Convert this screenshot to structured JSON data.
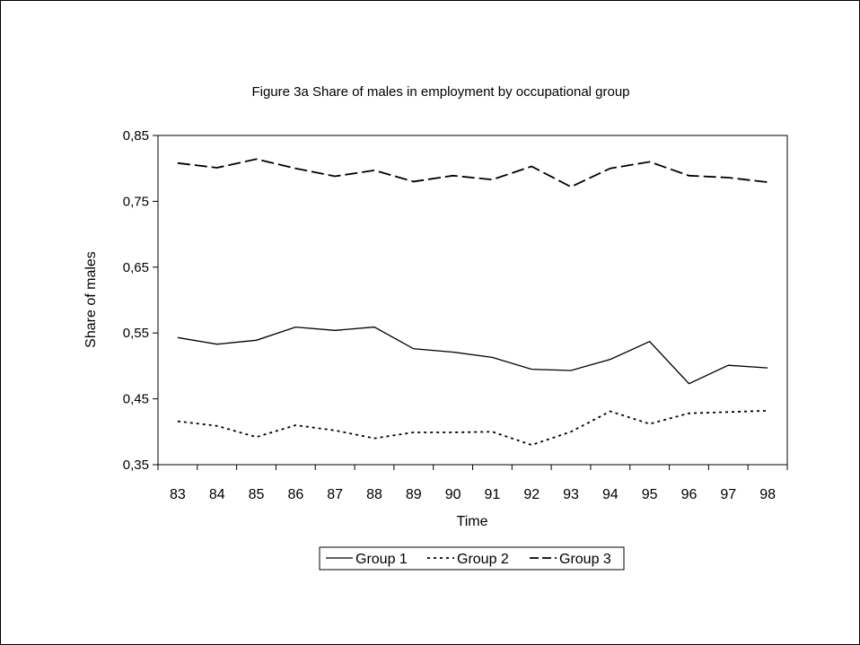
{
  "chart_data": {
    "type": "line",
    "title": "Figure 3a Share of males in employment by occupational group",
    "xlabel": "Time",
    "ylabel": "Share of males",
    "ylim": [
      0.35,
      0.85
    ],
    "yticks": [
      "0,35",
      "0,45",
      "0,55",
      "0,65",
      "0,75",
      "0,85"
    ],
    "categories": [
      "83",
      "84",
      "85",
      "86",
      "87",
      "88",
      "89",
      "90",
      "91",
      "92",
      "93",
      "94",
      "95",
      "96",
      "97",
      "98"
    ],
    "grid": false,
    "legend_position": "bottom",
    "series": [
      {
        "name": "Group 1",
        "style": "solid",
        "values": [
          0.543,
          0.533,
          0.539,
          0.559,
          0.554,
          0.559,
          0.526,
          0.521,
          0.513,
          0.495,
          0.493,
          0.51,
          0.537,
          0.473,
          0.501,
          0.497
        ]
      },
      {
        "name": "Group 2",
        "style": "dotted",
        "values": [
          0.416,
          0.409,
          0.392,
          0.41,
          0.402,
          0.39,
          0.399,
          0.399,
          0.4,
          0.38,
          0.4,
          0.431,
          0.412,
          0.428,
          0.43,
          0.432
        ]
      },
      {
        "name": "Group 3",
        "style": "dashed",
        "values": [
          0.808,
          0.801,
          0.814,
          0.8,
          0.788,
          0.797,
          0.78,
          0.789,
          0.783,
          0.803,
          0.772,
          0.8,
          0.81,
          0.789,
          0.786,
          0.779
        ]
      }
    ]
  }
}
